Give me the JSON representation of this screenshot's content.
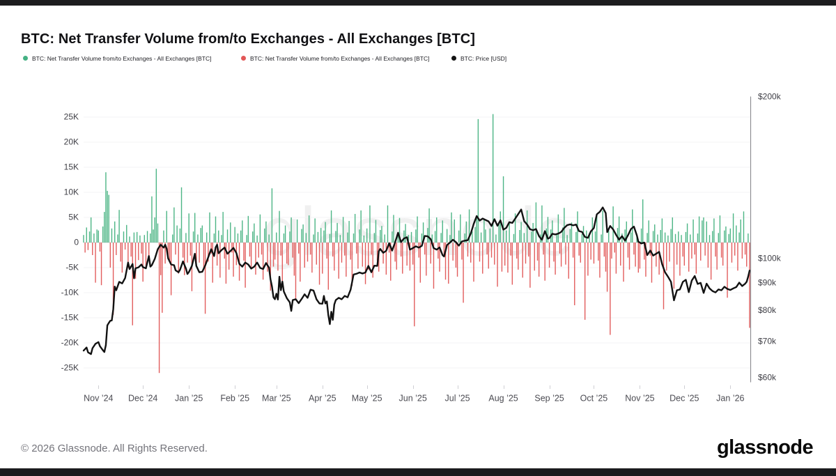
{
  "page": {
    "title": "BTC: Net Transfer Volume from/to Exchanges - All Exchanges [BTC]",
    "watermark": "glassnode",
    "footer_copyright": "© 2026 Glassnode. All Rights Reserved.",
    "brand_logo": "glassnode"
  },
  "legend": {
    "items": [
      {
        "label": "BTC: Net Transfer Volume from/to Exchanges - All Exchanges [BTC]",
        "color": "#44b183"
      },
      {
        "label": "BTC: Net Transfer Volume from/to Exchanges - All Exchanges [BTC]",
        "color": "#e25757"
      },
      {
        "label": "BTC: Price [USD]",
        "color": "#141414"
      }
    ]
  },
  "chart_data": {
    "type": "bar",
    "title": "BTC: Net Transfer Volume from/to Exchanges - All Exchanges [BTC]",
    "grid": "horizontal",
    "legend_position": "top-left",
    "series": [
      {
        "name": "Net Transfer Volume positive (to exchanges)",
        "type": "bar",
        "color": "#4cb585",
        "axis": "left"
      },
      {
        "name": "Net Transfer Volume negative (from exchanges)",
        "type": "bar",
        "color": "#e25d5d",
        "axis": "left"
      },
      {
        "name": "BTC: Price [USD]",
        "type": "line",
        "color": "#121212",
        "axis": "right",
        "scale": "log"
      }
    ],
    "left_axis": {
      "unit": "BTC (thousands)",
      "ticks": [
        "25K",
        "20K",
        "15K",
        "10K",
        "5K",
        "0",
        "-5K",
        "-10K",
        "-15K",
        "-20K",
        "-25K"
      ],
      "values": [
        25,
        20,
        15,
        10,
        5,
        0,
        -5,
        -10,
        -15,
        -20,
        -25
      ]
    },
    "right_axis": {
      "unit": "USD",
      "scale": "log",
      "ticks": [
        "$200k",
        "$100k",
        "$90k",
        "$80k",
        "$70k",
        "$60k"
      ],
      "values": [
        200,
        100,
        90,
        80,
        70,
        60
      ],
      "range_k": [
        60,
        200
      ]
    },
    "x_axis": {
      "labels": [
        "Nov ’24",
        "Dec ’24",
        "Jan ’25",
        "Feb ’25",
        "Mar ’25",
        "Apr ’25",
        "May ’25",
        "Jun ’25",
        "Jul ’25",
        "Aug ’25",
        "Sep ’25",
        "Oct ’25",
        "Nov ’25",
        "Dec ’25",
        "Jan ’26"
      ],
      "tick_days": [
        10,
        40,
        71,
        102,
        130,
        161,
        191,
        222,
        252,
        283,
        314,
        344,
        375,
        405,
        436
      ]
    },
    "bars_unit": "K BTC per day",
    "bars": [
      1.5,
      -2.0,
      3.0,
      -1.5,
      2.2,
      5.0,
      -2.5,
      1.8,
      -8.0,
      2.6,
      2.4,
      -1.8,
      -8.5,
      3.2,
      6.1,
      14.0,
      10.3,
      9.5,
      -5.0,
      2.8,
      -14.4,
      4.2,
      -2.5,
      1.6,
      6.5,
      -3.8,
      -6.0,
      2.2,
      -1.4,
      3.5,
      -5.0,
      1.2,
      -2.8,
      -16.5,
      2.0,
      -7.2,
      2.1,
      -3.5,
      1.4,
      -2.2,
      -7.8,
      1.5,
      -5.0,
      2.3,
      -3.2,
      1.8,
      9.2,
      2.6,
      5.0,
      14.7,
      3.8,
      -26.0,
      -6.5,
      -14.0,
      2.4,
      -4.2,
      6.3,
      -2.8,
      -3.5,
      -10.5,
      1.6,
      7.0,
      -2.4,
      3.4,
      -6.2,
      2.8,
      11.0,
      -3.0,
      -6.5,
      1.9,
      -4.0,
      5.8,
      -2.6,
      -9.7,
      2.2,
      5.9,
      -4.4,
      1.6,
      -4.0,
      2.9,
      3.4,
      -5.5,
      -14.2,
      2.0,
      -3.8,
      6.0,
      -2.2,
      -8.0,
      1.8,
      5.2,
      -4.6,
      2.4,
      -7.0,
      1.5,
      6.1,
      -3.2,
      -8.2,
      2.6,
      -5.4,
      4.0,
      -2.0,
      -6.8,
      3.1,
      -4.5,
      1.8,
      -7.6,
      2.4,
      4.4,
      -3.6,
      -9.0,
      1.5,
      5.3,
      -2.8,
      -5.2,
      2.2,
      3.8,
      -6.4,
      1.4,
      -3.0,
      5.6,
      -2.4,
      -7.4,
      2.8,
      4.2,
      -5.8,
      1.6,
      -9.6,
      10.8,
      -4.8,
      -3.4,
      2.0,
      -5.6,
      6.3,
      -2.6,
      -8.8,
      1.8,
      3.4,
      -4.2,
      -4.5,
      2.2,
      5.0,
      -3.0,
      -6.6,
      -11.5,
      4.6,
      -2.2,
      -7.8,
      2.7,
      3.6,
      -5.0,
      1.9,
      -3.8,
      5.4,
      -2.4,
      -6.0,
      1.6,
      4.8,
      -4.4,
      2.1,
      -8.4,
      2.9,
      -6.2,
      2.4,
      4.1,
      -3.2,
      -9.4,
      1.7,
      6.4,
      -2.8,
      -5.6,
      2.3,
      3.9,
      -7.2,
      1.5,
      -4.0,
      5.1,
      -2.6,
      -6.8,
      2.0,
      4.3,
      -3.4,
      -8.6,
      1.8,
      5.7,
      -2.2,
      -5.2,
      2.6,
      6.4,
      -4.8,
      1.4,
      -8.3,
      2.8,
      -5.4,
      7.4,
      -2.4,
      -7.0,
      1.9,
      4.5,
      -3.6,
      -5.8,
      2.5,
      3.3,
      -4.2,
      1.6,
      -6.4,
      7.4,
      -2.0,
      -7.6,
      2.2,
      5.5,
      -3.8,
      -5.4,
      1.7,
      4.9,
      -2.8,
      -6.2,
      2.4,
      3.7,
      -4.6,
      1.5,
      -5.6,
      2.1,
      -4.4,
      -16.7,
      2.6,
      5.2,
      -3.0,
      -8.0,
      1.8,
      4.0,
      -2.4,
      -6.6,
      2.9,
      6.8,
      -4.2,
      1.6,
      -9.2,
      2.3,
      5.0,
      -3.2,
      -5.8,
      1.9,
      4.4,
      -2.6,
      -7.4,
      2.7,
      -8.2,
      1.5,
      6.0,
      -3.6,
      4.6,
      -5.0,
      -6.8,
      2.4,
      5.6,
      -3.4,
      -12.0,
      1.8,
      4.2,
      -2.8,
      6.6,
      -4.0,
      2.2,
      -7.8,
      3.1,
      5.4,
      24.6,
      -3.8,
      2.0,
      -6.2,
      4.8,
      2.6,
      -2.4,
      -5.2,
      2.8,
      -3.0,
      25.6,
      -4.4,
      1.6,
      -8.8,
      3.6,
      6.2,
      -5.8,
      13.2,
      -4.6,
      2.4,
      -6.0,
      3.8,
      -2.6,
      -8.4,
      1.7,
      5.8,
      -3.2,
      -5.4,
      2.5,
      4.1,
      -7.0,
      1.9,
      -4.2,
      6.4,
      -2.8,
      -9.0,
      2.2,
      3.9,
      -5.6,
      8.0,
      -3.6,
      -6.8,
      1.6,
      7.4,
      -2.4,
      -7.6,
      2.8,
      5.1,
      -5.0,
      2.6,
      4.4,
      -3.8,
      -6.4,
      1.8,
      5.6,
      -2.2,
      -4.8,
      3.0,
      6.9,
      -4.4,
      1.5,
      -7.2,
      2.7,
      4.0,
      -3.0,
      -12.5,
      2.1,
      6.2,
      -2.6,
      -4.0,
      1.7,
      3.3,
      -15.4,
      2.4,
      -6.6,
      1.9,
      -3.4,
      5.0,
      -4.2,
      2.2,
      5.4,
      -3.6,
      -7.0,
      1.6,
      6.4,
      -2.8,
      -5.8,
      -9.8,
      2.4,
      -18.4,
      -3.2,
      7.2,
      -2.0,
      -6.2,
      2.9,
      5.2,
      -4.6,
      1.8,
      -7.8,
      2.6,
      4.2,
      -3.0,
      -5.4,
      2.0,
      6.6,
      -2.4,
      -4.8,
      1.5,
      -6.0,
      -5.2,
      2.8,
      8.6,
      -3.4,
      -6.8,
      1.9,
      4.4,
      -2.6,
      -8.0,
      2.3,
      3.6,
      -4.8,
      1.6,
      -6.4,
      2.5,
      4.8,
      -13.3,
      2.0,
      -5.6,
      1.4,
      -3.8,
      2.7,
      5.0,
      -9.2,
      1.7,
      -4.4,
      2.2,
      -6.6,
      1.5,
      -2.8,
      -4.6,
      2.1,
      3.8,
      -5.8,
      1.6,
      -3.2,
      4.6,
      -2.4,
      -6.2,
      1.8,
      5.2,
      -3.6,
      4.4,
      5.0,
      -2.6,
      4.2,
      -5.0,
      1.5,
      -7.4,
      2.3,
      4.8,
      -2.8,
      -5.4,
      1.9,
      5.4,
      -3.0,
      -4.6,
      2.4,
      3.2,
      -11.0,
      1.7,
      2.8,
      -4.0,
      5.8,
      -2.6,
      3.4,
      -5.6,
      2.0,
      4.6,
      -3.2,
      6.2,
      -2.4,
      -4.8,
      1.8,
      -17.0
    ],
    "price_unit": "USD (thousands)",
    "price_keypoints": [
      [
        0,
        67.4
      ],
      [
        2,
        68.3
      ],
      [
        3,
        66.9
      ],
      [
        5,
        66.4
      ],
      [
        6,
        68.1
      ],
      [
        8,
        69.4
      ],
      [
        10,
        69.9
      ],
      [
        11,
        68.7
      ],
      [
        13,
        67.5
      ],
      [
        14,
        67.0
      ],
      [
        15,
        69.0
      ],
      [
        16,
        75.1
      ],
      [
        17,
        75.9
      ],
      [
        18,
        76.6
      ],
      [
        19,
        76.7
      ],
      [
        20,
        80.5
      ],
      [
        21,
        88.7
      ],
      [
        22,
        87.3
      ],
      [
        24,
        90.5
      ],
      [
        26,
        89.9
      ],
      [
        28,
        92.0
      ],
      [
        30,
        98.3
      ],
      [
        31,
        95.6
      ],
      [
        33,
        97.7
      ],
      [
        34,
        91.9
      ],
      [
        35,
        95.9
      ],
      [
        37,
        96.3
      ],
      [
        39,
        97.5
      ],
      [
        40,
        96.4
      ],
      [
        42,
        95.9
      ],
      [
        44,
        101.1
      ],
      [
        45,
        96.6
      ],
      [
        46,
        97.2
      ],
      [
        48,
        99.9
      ],
      [
        50,
        104.1
      ],
      [
        52,
        106.1
      ],
      [
        54,
        104.8
      ],
      [
        55,
        106.1
      ],
      [
        56,
        104.3
      ],
      [
        57,
        100.1
      ],
      [
        59,
        97.5
      ],
      [
        61,
        97.2
      ],
      [
        62,
        95.1
      ],
      [
        64,
        94.3
      ],
      [
        65,
        95.3
      ],
      [
        67,
        98.8
      ],
      [
        69,
        95.8
      ],
      [
        70,
        93.6
      ],
      [
        71,
        94.4
      ],
      [
        73,
        96.9
      ],
      [
        75,
        102.1
      ],
      [
        76,
        96.9
      ],
      [
        78,
        94.3
      ],
      [
        80,
        94.5
      ],
      [
        82,
        97.1
      ],
      [
        84,
        100.5
      ],
      [
        86,
        104.1
      ],
      [
        88,
        101.1
      ],
      [
        89,
        104.9
      ],
      [
        90,
        106.1
      ],
      [
        91,
        102.3
      ],
      [
        93,
        103.7
      ],
      [
        95,
        104.8
      ],
      [
        97,
        102.1
      ],
      [
        99,
        103.3
      ],
      [
        101,
        104.7
      ],
      [
        103,
        102.4
      ],
      [
        105,
        97.8
      ],
      [
        107,
        96.6
      ],
      [
        109,
        98.3
      ],
      [
        111,
        97.5
      ],
      [
        113,
        95.8
      ],
      [
        115,
        96.6
      ],
      [
        117,
        98.3
      ],
      [
        119,
        96.1
      ],
      [
        121,
        95.6
      ],
      [
        123,
        98.1
      ],
      [
        125,
        96.2
      ],
      [
        126,
        91.5
      ],
      [
        127,
        88.7
      ],
      [
        128,
        84.7
      ],
      [
        129,
        84.0
      ],
      [
        130,
        86.0
      ],
      [
        131,
        83.9
      ],
      [
        132,
        92.5
      ],
      [
        133,
        87.3
      ],
      [
        134,
        90.6
      ],
      [
        135,
        86.8
      ],
      [
        137,
        84.4
      ],
      [
        139,
        82.9
      ],
      [
        140,
        79.9
      ],
      [
        141,
        83.7
      ],
      [
        143,
        84.0
      ],
      [
        145,
        82.6
      ],
      [
        147,
        84.1
      ],
      [
        149,
        85.8
      ],
      [
        151,
        84.5
      ],
      [
        153,
        87.5
      ],
      [
        155,
        87.2
      ],
      [
        157,
        84.0
      ],
      [
        159,
        82.5
      ],
      [
        161,
        82.4
      ],
      [
        162,
        85.2
      ],
      [
        163,
        82.5
      ],
      [
        164,
        83.2
      ],
      [
        165,
        78.4
      ],
      [
        166,
        75.5
      ],
      [
        167,
        79.6
      ],
      [
        168,
        76.9
      ],
      [
        169,
        82.1
      ],
      [
        170,
        83.7
      ],
      [
        172,
        84.5
      ],
      [
        174,
        84.0
      ],
      [
        176,
        85.2
      ],
      [
        178,
        84.7
      ],
      [
        180,
        87.5
      ],
      [
        182,
        93.4
      ],
      [
        184,
        93.7
      ],
      [
        186,
        94.2
      ],
      [
        188,
        93.8
      ],
      [
        190,
        94.2
      ],
      [
        192,
        96.9
      ],
      [
        194,
        94.3
      ],
      [
        196,
        97.0
      ],
      [
        198,
        96.9
      ],
      [
        199,
        103.2
      ],
      [
        200,
        104.2
      ],
      [
        202,
        102.5
      ],
      [
        204,
        103.4
      ],
      [
        206,
        106.8
      ],
      [
        208,
        103.5
      ],
      [
        210,
        107.2
      ],
      [
        212,
        111.7
      ],
      [
        214,
        107.3
      ],
      [
        216,
        109.0
      ],
      [
        218,
        109.6
      ],
      [
        220,
        103.9
      ],
      [
        222,
        104.6
      ],
      [
        224,
        105.4
      ],
      [
        226,
        104.8
      ],
      [
        228,
        105.6
      ],
      [
        230,
        110.2
      ],
      [
        232,
        110.0
      ],
      [
        234,
        108.7
      ],
      [
        236,
        104.6
      ],
      [
        238,
        103.9
      ],
      [
        240,
        104.9
      ],
      [
        242,
        101.5
      ],
      [
        243,
        100.9
      ],
      [
        245,
        106.0
      ],
      [
        247,
        107.1
      ],
      [
        249,
        108.4
      ],
      [
        251,
        107.3
      ],
      [
        253,
        105.7
      ],
      [
        255,
        107.6
      ],
      [
        257,
        108.0
      ],
      [
        259,
        108.2
      ],
      [
        261,
        111.3
      ],
      [
        263,
        116.0
      ],
      [
        265,
        120.0
      ],
      [
        267,
        117.7
      ],
      [
        269,
        118.7
      ],
      [
        271,
        118.0
      ],
      [
        273,
        117.3
      ],
      [
        275,
        115.0
      ],
      [
        277,
        118.4
      ],
      [
        279,
        115.1
      ],
      [
        281,
        117.8
      ],
      [
        283,
        113.2
      ],
      [
        285,
        114.1
      ],
      [
        287,
        116.9
      ],
      [
        289,
        116.5
      ],
      [
        291,
        118.7
      ],
      [
        293,
        121.0
      ],
      [
        295,
        123.4
      ],
      [
        297,
        117.4
      ],
      [
        299,
        115.7
      ],
      [
        301,
        113.4
      ],
      [
        303,
        112.9
      ],
      [
        305,
        113.5
      ],
      [
        307,
        110.1
      ],
      [
        309,
        108.4
      ],
      [
        311,
        112.5
      ],
      [
        313,
        108.9
      ],
      [
        314,
        109.2
      ],
      [
        316,
        111.2
      ],
      [
        318,
        110.9
      ],
      [
        320,
        111.3
      ],
      [
        322,
        112.1
      ],
      [
        324,
        114.0
      ],
      [
        326,
        115.4
      ],
      [
        328,
        115.8
      ],
      [
        330,
        115.3
      ],
      [
        332,
        115.7
      ],
      [
        334,
        112.5
      ],
      [
        336,
        112.1
      ],
      [
        338,
        109.7
      ],
      [
        340,
        109.3
      ],
      [
        342,
        112.4
      ],
      [
        344,
        114.0
      ],
      [
        346,
        120.9
      ],
      [
        348,
        122.2
      ],
      [
        350,
        124.5
      ],
      [
        352,
        121.5
      ],
      [
        353,
        112.0
      ],
      [
        355,
        115.0
      ],
      [
        357,
        113.3
      ],
      [
        359,
        110.7
      ],
      [
        361,
        108.4
      ],
      [
        363,
        110.1
      ],
      [
        365,
        108.0
      ],
      [
        367,
        110.5
      ],
      [
        369,
        113.5
      ],
      [
        371,
        114.7
      ],
      [
        373,
        110.4
      ],
      [
        374,
        107.5
      ],
      [
        376,
        106.7
      ],
      [
        378,
        107.1
      ],
      [
        380,
        101.5
      ],
      [
        382,
        103.5
      ],
      [
        384,
        101.3
      ],
      [
        386,
        102.1
      ],
      [
        388,
        102.9
      ],
      [
        390,
        97.7
      ],
      [
        392,
        94.3
      ],
      [
        394,
        92.5
      ],
      [
        396,
        90.5
      ],
      [
        398,
        83.6
      ],
      [
        400,
        87.3
      ],
      [
        402,
        87.6
      ],
      [
        404,
        90.5
      ],
      [
        406,
        91.3
      ],
      [
        408,
        86.6
      ],
      [
        410,
        91.0
      ],
      [
        412,
        92.8
      ],
      [
        414,
        89.7
      ],
      [
        416,
        90.1
      ],
      [
        418,
        86.3
      ],
      [
        420,
        89.8
      ],
      [
        422,
        88.0
      ],
      [
        424,
        87.0
      ],
      [
        426,
        86.5
      ],
      [
        428,
        87.6
      ],
      [
        430,
        87.3
      ],
      [
        432,
        88.6
      ],
      [
        434,
        87.8
      ],
      [
        436,
        87.4
      ],
      [
        438,
        88.0
      ],
      [
        440,
        88.5
      ],
      [
        442,
        90.2
      ],
      [
        444,
        88.9
      ],
      [
        446,
        89.8
      ],
      [
        447,
        90.5
      ],
      [
        448,
        92.5
      ],
      [
        449,
        95.0
      ]
    ]
  }
}
